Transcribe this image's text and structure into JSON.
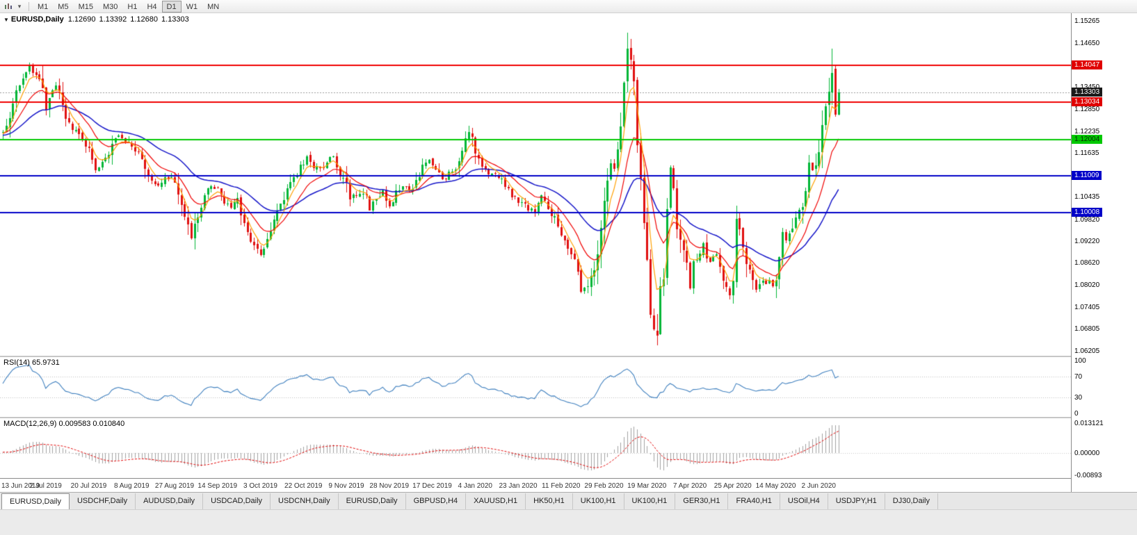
{
  "toolbar": {
    "timeframes": [
      "M1",
      "M5",
      "M15",
      "M30",
      "H1",
      "H4",
      "D1",
      "W1",
      "MN"
    ],
    "active_timeframe": "D1"
  },
  "chart_header": {
    "symbol": "EURUSD,Daily",
    "open": "1.12690",
    "high": "1.13392",
    "low": "1.12680",
    "close": "1.13303"
  },
  "price_axis": {
    "labels": [
      "1.15265",
      "1.14650",
      "1.13450",
      "1.12850",
      "1.12235",
      "1.11635",
      "1.10435",
      "1.09820",
      "1.09220",
      "1.08620",
      "1.08020",
      "1.07405",
      "1.06805",
      "1.06205"
    ],
    "badges": [
      {
        "text": "1.14047",
        "price": 1.14047,
        "bg": "#E00000",
        "fg": "#FFFFFF"
      },
      {
        "text": "1.13303",
        "price": 1.13303,
        "bg": "#1A1A1A",
        "fg": "#FFFFFF"
      },
      {
        "text": "1.13034",
        "price": 1.13034,
        "bg": "#E00000",
        "fg": "#FFFFFF"
      },
      {
        "text": "1.12004",
        "price": 1.12004,
        "bg": "#00C800",
        "fg": "#062A06"
      },
      {
        "text": "1.11009",
        "price": 1.11009,
        "bg": "#0000C8",
        "fg": "#FFFFFF"
      },
      {
        "text": "1.10008",
        "price": 1.10008,
        "bg": "#0000C8",
        "fg": "#FFFFFF"
      }
    ]
  },
  "hlines": [
    {
      "price": 1.14047,
      "color": "#F00000",
      "width": 2
    },
    {
      "price": 1.13034,
      "color": "#F00000",
      "width": 2
    },
    {
      "price": 1.12004,
      "color": "#00C800",
      "width": 2
    },
    {
      "price": 1.11009,
      "color": "#0000C8",
      "width": 2
    },
    {
      "price": 1.10008,
      "color": "#0000C8",
      "width": 2
    }
  ],
  "bid_line": {
    "price": 1.13303,
    "color": "#9a9a9a"
  },
  "rsi_panel": {
    "label": "RSI(14) 65.9731",
    "axis_labels": [
      "100",
      "70",
      "30",
      "0"
    ],
    "levels": [
      70,
      30
    ],
    "range": [
      0,
      100
    ],
    "line_color": "#3E7FBE"
  },
  "macd_panel": {
    "label": "MACD(12,26,9) 0.009583 0.010840",
    "axis_labels": [
      "0.013121",
      "0.00000",
      "-0.00893"
    ],
    "range": [
      -0.00893,
      0.013121
    ],
    "histogram_color": "#A0A0A0",
    "signal_color": "#E00000"
  },
  "date_axis": {
    "labels": [
      "13 Jun 2019",
      "2 Jul 2019",
      "20 Jul 2019",
      "8 Aug 2019",
      "27 Aug 2019",
      "14 Sep 2019",
      "3 Oct 2019",
      "22 Oct 2019",
      "9 Nov 2019",
      "28 Nov 2019",
      "17 Dec 2019",
      "4 Jan 2020",
      "23 Jan 2020",
      "11 Feb 2020",
      "29 Feb 2020",
      "19 Mar 2020",
      "7 Apr 2020",
      "25 Apr 2020",
      "14 May 2020",
      "2 Jun 2020"
    ]
  },
  "tabs": {
    "items": [
      "EURUSD,Daily",
      "USDCHF,Daily",
      "AUDUSD,Daily",
      "USDCAD,Daily",
      "USDCNH,Daily",
      "EURUSD,Daily",
      "GBPUSD,H4",
      "XAUUSD,H1",
      "HK50,H1",
      "UK100,H1",
      "UK100,H1",
      "GER30,H1",
      "FRA40,H1",
      "USOil,H4",
      "USDJPY,H1",
      "DJ30,Daily"
    ],
    "active_index": 0
  },
  "chart_data": {
    "type": "candlestick",
    "symbol": "EURUSD",
    "timeframe": "Daily",
    "current_ohlc": {
      "open": 1.1269,
      "high": 1.13392,
      "low": 1.1268,
      "close": 1.13303
    },
    "price_range": [
      1.0607,
      1.1548
    ],
    "bar_count": 254,
    "warmup_bars": 40,
    "seed": 9,
    "candle_up_color": "#00B636",
    "candle_down_color": "#E01010",
    "moving_averages": [
      {
        "period": 34,
        "color": "#1414C8",
        "width": 1.5
      },
      {
        "period": 13,
        "color": "#F00000",
        "width": 1.2
      },
      {
        "period": 5,
        "color": "#FFA000",
        "width": 1.2
      }
    ],
    "rsi": {
      "period": 14,
      "current": 65.9731
    },
    "macd": {
      "fast": 12,
      "slow": 26,
      "signal": 9,
      "current": 0.009583,
      "signal_current": 0.01084
    },
    "anchors": [
      [
        -40,
        1.1185
      ],
      [
        -25,
        1.1205
      ],
      [
        -10,
        1.123
      ],
      [
        -3,
        1.121
      ],
      [
        0,
        1.1225
      ],
      [
        2,
        1.127
      ],
      [
        4,
        1.133
      ],
      [
        6,
        1.1365
      ],
      [
        8,
        1.14
      ],
      [
        10,
        1.1382
      ],
      [
        12,
        1.133
      ],
      [
        13,
        1.1288
      ],
      [
        15,
        1.133
      ],
      [
        16,
        1.1352
      ],
      [
        18,
        1.129
      ],
      [
        19,
        1.1258
      ],
      [
        21,
        1.123
      ],
      [
        23,
        1.1215
      ],
      [
        25,
        1.119
      ],
      [
        27,
        1.115
      ],
      [
        28,
        1.1118
      ],
      [
        30,
        1.1135
      ],
      [
        32,
        1.116
      ],
      [
        34,
        1.1205
      ],
      [
        36,
        1.121
      ],
      [
        38,
        1.1195
      ],
      [
        40,
        1.1172
      ],
      [
        42,
        1.115
      ],
      [
        43,
        1.1108
      ],
      [
        45,
        1.109
      ],
      [
        47,
        1.1078
      ],
      [
        49,
        1.1092
      ],
      [
        51,
        1.1098
      ],
      [
        53,
        1.106
      ],
      [
        55,
        1.0985
      ],
      [
        57,
        1.093
      ],
      [
        59,
        1.099
      ],
      [
        61,
        1.105
      ],
      [
        63,
        1.1072
      ],
      [
        65,
        1.1062
      ],
      [
        67,
        1.1028
      ],
      [
        69,
        1.1015
      ],
      [
        71,
        1.104
      ],
      [
        73,
        1.0958
      ],
      [
        75,
        1.092
      ],
      [
        77,
        1.0898
      ],
      [
        78,
        1.0888
      ],
      [
        80,
        1.0932
      ],
      [
        82,
        1.0985
      ],
      [
        84,
        1.1025
      ],
      [
        86,
        1.1058
      ],
      [
        88,
        1.1092
      ],
      [
        90,
        1.1128
      ],
      [
        92,
        1.1152
      ],
      [
        94,
        1.1128
      ],
      [
        96,
        1.1118
      ],
      [
        98,
        1.1138
      ],
      [
        100,
        1.1152
      ],
      [
        102,
        1.1108
      ],
      [
        104,
        1.1075
      ],
      [
        105,
        1.1032
      ],
      [
        107,
        1.1052
      ],
      [
        109,
        1.106
      ],
      [
        111,
        1.1012
      ],
      [
        113,
        1.1035
      ],
      [
        115,
        1.1058
      ],
      [
        117,
        1.1018
      ],
      [
        119,
        1.1052
      ],
      [
        121,
        1.1078
      ],
      [
        123,
        1.1062
      ],
      [
        125,
        1.1082
      ],
      [
        127,
        1.1122
      ],
      [
        129,
        1.1142
      ],
      [
        131,
        1.1118
      ],
      [
        133,
        1.1092
      ],
      [
        135,
        1.1108
      ],
      [
        137,
        1.1128
      ],
      [
        139,
        1.1172
      ],
      [
        141,
        1.1215
      ],
      [
        142,
        1.1198
      ],
      [
        143,
        1.1168
      ],
      [
        145,
        1.1132
      ],
      [
        147,
        1.1112
      ],
      [
        149,
        1.1102
      ],
      [
        151,
        1.1092
      ],
      [
        153,
        1.1062
      ],
      [
        155,
        1.104
      ],
      [
        157,
        1.1028
      ],
      [
        159,
        1.1012
      ],
      [
        161,
        1.1002
      ],
      [
        163,
        1.1042
      ],
      [
        165,
        1.1012
      ],
      [
        167,
        1.0982
      ],
      [
        169,
        1.0942
      ],
      [
        171,
        1.0912
      ],
      [
        173,
        1.0862
      ],
      [
        175,
        1.0788
      ],
      [
        177,
        1.0798
      ],
      [
        179,
        1.0852
      ],
      [
        181,
        1.0942
      ],
      [
        182,
        1.1028
      ],
      [
        183,
        1.1088
      ],
      [
        184,
        1.1138
      ],
      [
        185,
        1.1128
      ],
      [
        186,
        1.1162
      ],
      [
        187,
        1.1252
      ],
      [
        188,
        1.1342
      ],
      [
        189,
        1.1448
      ],
      [
        190,
        1.1412
      ],
      [
        191,
        1.1358
      ],
      [
        192,
        1.1188
      ],
      [
        193,
        1.1108
      ],
      [
        194,
        1.0978
      ],
      [
        195,
        1.0858
      ],
      [
        196,
        1.0722
      ],
      [
        197,
        1.0688
      ],
      [
        198,
        1.0662
      ],
      [
        199,
        1.0782
      ],
      [
        200,
        1.0822
      ],
      [
        201,
        1.1022
      ],
      [
        202,
        1.1132
      ],
      [
        203,
        1.1048
      ],
      [
        204,
        1.0962
      ],
      [
        205,
        1.0928
      ],
      [
        206,
        1.0898
      ],
      [
        207,
        1.0852
      ],
      [
        208,
        1.0798
      ],
      [
        209,
        1.0858
      ],
      [
        210,
        1.0872
      ],
      [
        211,
        1.0895
      ],
      [
        212,
        1.0912
      ],
      [
        213,
        1.0885
      ],
      [
        214,
        1.0868
      ],
      [
        215,
        1.0885
      ],
      [
        216,
        1.0875
      ],
      [
        217,
        1.0845
      ],
      [
        218,
        1.0818
      ],
      [
        219,
        1.0792
      ],
      [
        220,
        1.0772
      ],
      [
        221,
        1.0825
      ],
      [
        222,
        1.0975
      ],
      [
        223,
        1.0942
      ],
      [
        224,
        1.0905
      ],
      [
        225,
        1.0862
      ],
      [
        226,
        1.0838
      ],
      [
        227,
        1.0812
      ],
      [
        228,
        1.0785
      ],
      [
        229,
        1.0802
      ],
      [
        230,
        1.0818
      ],
      [
        231,
        1.0798
      ],
      [
        232,
        1.0815
      ],
      [
        233,
        1.0802
      ],
      [
        234,
        1.0812
      ],
      [
        235,
        1.0892
      ],
      [
        236,
        1.0952
      ],
      [
        237,
        1.0928
      ],
      [
        238,
        1.0938
      ],
      [
        239,
        1.0962
      ],
      [
        240,
        1.0988
      ],
      [
        241,
        1.1002
      ],
      [
        242,
        1.1018
      ],
      [
        243,
        1.1072
      ],
      [
        244,
        1.1138
      ],
      [
        245,
        1.1112
      ],
      [
        246,
        1.1135
      ],
      [
        247,
        1.1172
      ],
      [
        248,
        1.1238
      ],
      [
        249,
        1.1292
      ],
      [
        250,
        1.1342
      ],
      [
        251,
        1.1398
      ],
      [
        252,
        1.1272
      ],
      [
        253,
        1.13303
      ]
    ],
    "overrides": {
      "8": {
        "h": 1.1412
      },
      "57": {
        "l": 1.0926
      },
      "78": {
        "l": 1.0879
      },
      "141": {
        "h": 1.1239
      },
      "175": {
        "l": 1.0778
      },
      "189": {
        "h": 1.1495
      },
      "198": {
        "l": 1.0636
      },
      "222": {
        "h": 1.1019
      },
      "251": {
        "h": 1.145
      },
      "252": {
        "o": 1.1396,
        "h": 1.1402,
        "l": 1.1264,
        "c": 1.127
      },
      "253": {
        "o": 1.1269,
        "h": 1.13392,
        "l": 1.1268,
        "c": 1.13303
      }
    }
  }
}
